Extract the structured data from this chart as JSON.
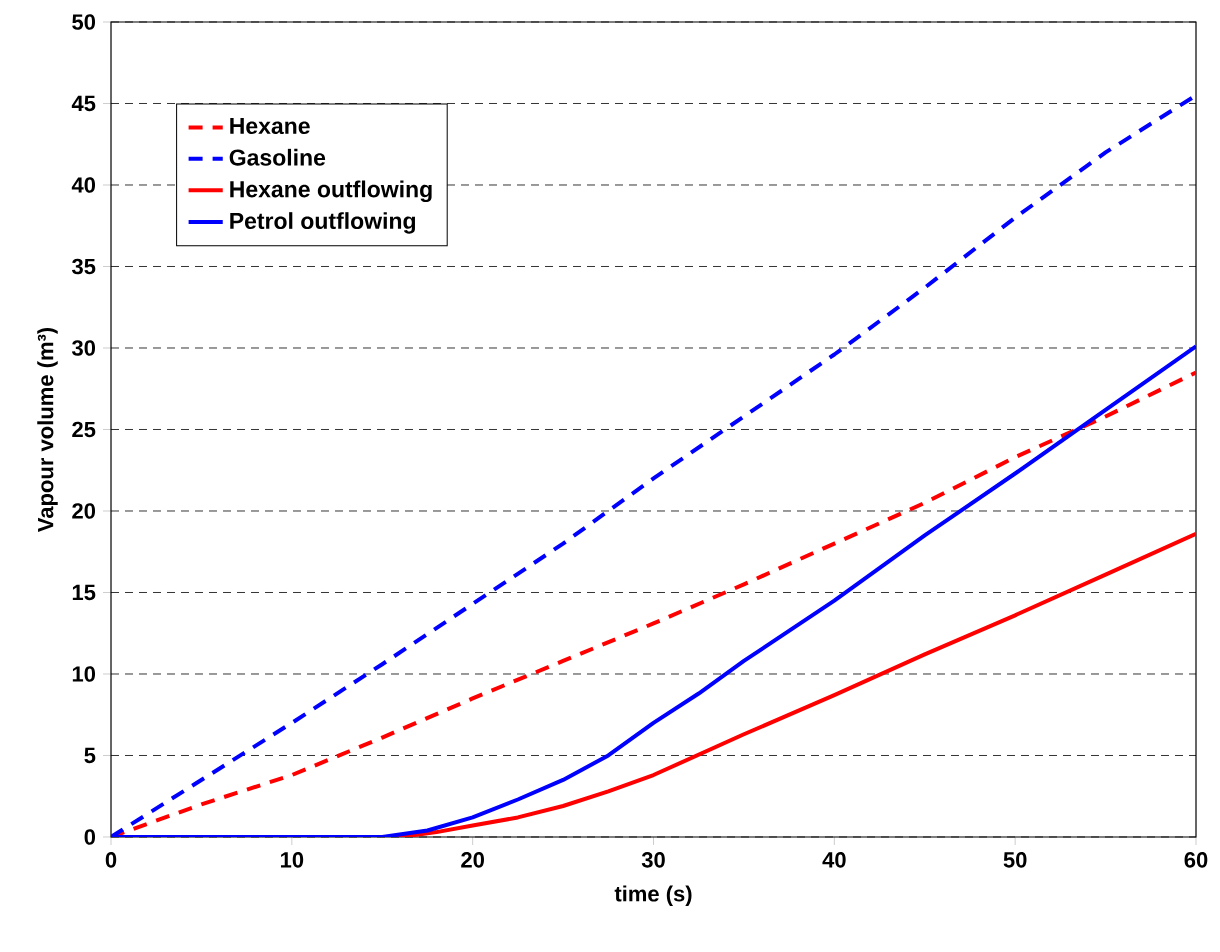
{
  "chart_data": {
    "type": "line",
    "xlabel": "time (s)",
    "ylabel": "Vapour volume (m³)",
    "xlim": [
      0,
      60
    ],
    "xticks": [
      0,
      10,
      20,
      30,
      40,
      50,
      60
    ],
    "ylim": [
      0,
      50
    ],
    "yticks": [
      0,
      5,
      10,
      15,
      20,
      25,
      30,
      35,
      40,
      45,
      50
    ],
    "grid": "y",
    "legend": "top left",
    "series": [
      {
        "name": "Hexane",
        "color": "#ff0000",
        "line_style": "dashed",
        "x": [
          0,
          5,
          10,
          15,
          20,
          25,
          30,
          35,
          40,
          45,
          50,
          55,
          60
        ],
        "values": [
          0,
          2.0,
          3.8,
          6.1,
          8.5,
          10.8,
          13.1,
          15.5,
          18.0,
          20.5,
          23.3,
          25.8,
          28.5
        ]
      },
      {
        "name": "Gasoline",
        "color": "#0000ff",
        "line_style": "dashed",
        "x": [
          0,
          5,
          10,
          15,
          20,
          25,
          30,
          35,
          40,
          45,
          50,
          55,
          60
        ],
        "values": [
          0,
          3.5,
          7.0,
          10.6,
          14.3,
          18.0,
          22.0,
          25.8,
          29.6,
          33.7,
          38.0,
          42.0,
          45.5
        ]
      },
      {
        "name": "Hexane outflowing",
        "color": "#ff0000",
        "line_style": "solid",
        "x": [
          0,
          16,
          18,
          20,
          22.5,
          25,
          27.5,
          30,
          35,
          40,
          45,
          50,
          55,
          60
        ],
        "values": [
          0,
          0,
          0.3,
          0.7,
          1.2,
          1.9,
          2.8,
          3.8,
          6.3,
          8.7,
          11.2,
          13.6,
          16.1,
          18.6
        ]
      },
      {
        "name": "Petrol outflowing",
        "color": "#0000ff",
        "line_style": "solid",
        "x": [
          0,
          15,
          17.5,
          20,
          22.5,
          25,
          27.5,
          30,
          32.5,
          35,
          40,
          45,
          50,
          55,
          60
        ],
        "values": [
          0,
          0,
          0.4,
          1.2,
          2.3,
          3.5,
          5.0,
          7.0,
          8.8,
          10.8,
          14.5,
          18.5,
          22.3,
          26.2,
          30.1
        ]
      }
    ]
  }
}
